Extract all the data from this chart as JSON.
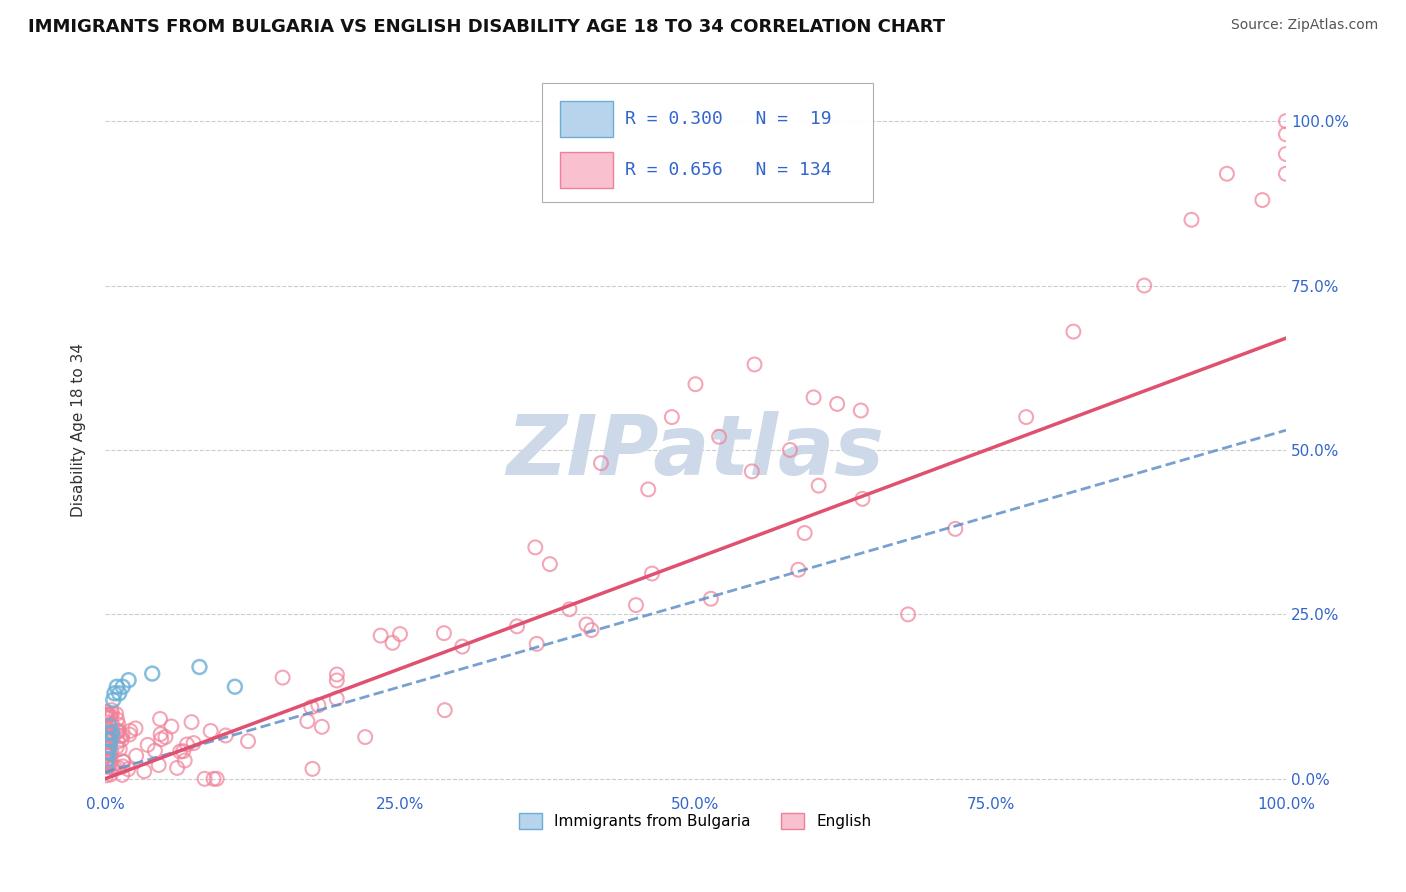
{
  "title": "IMMIGRANTS FROM BULGARIA VS ENGLISH DISABILITY AGE 18 TO 34 CORRELATION CHART",
  "source": "Source: ZipAtlas.com",
  "ylabel": "Disability Age 18 to 34",
  "xlim": [
    0,
    1.0
  ],
  "ylim": [
    -0.02,
    1.08
  ],
  "x_ticks": [
    0.0,
    0.25,
    0.5,
    0.75,
    1.0
  ],
  "x_tick_labels": [
    "0.0%",
    "25.0%",
    "50.0%",
    "75.0%",
    "100.0%"
  ],
  "y_ticks": [
    0.0,
    0.25,
    0.5,
    0.75,
    1.0
  ],
  "y_tick_labels": [
    "0.0%",
    "25.0%",
    "50.0%",
    "75.0%",
    "100.0%"
  ],
  "legend1_label": "R = 0.300   N =  19",
  "legend2_label": "R = 0.656   N = 134",
  "legend_color1": "#b8d4ec",
  "legend_color2": "#f9c0d0",
  "bg_color": "#ffffff",
  "grid_color": "#cccccc",
  "watermark_color": "#cdd8e8",
  "series1_color": "#6aaed6",
  "series2_color": "#f08098",
  "trendline1_color": "#6090c8",
  "trendline2_color": "#e05070",
  "series1_slope": 0.52,
  "series1_intercept": 0.01,
  "series2_slope": 0.67,
  "series2_intercept": 0.0,
  "axis_label_color": "#3366cc",
  "title_color": "#111111",
  "source_color": "#555555"
}
